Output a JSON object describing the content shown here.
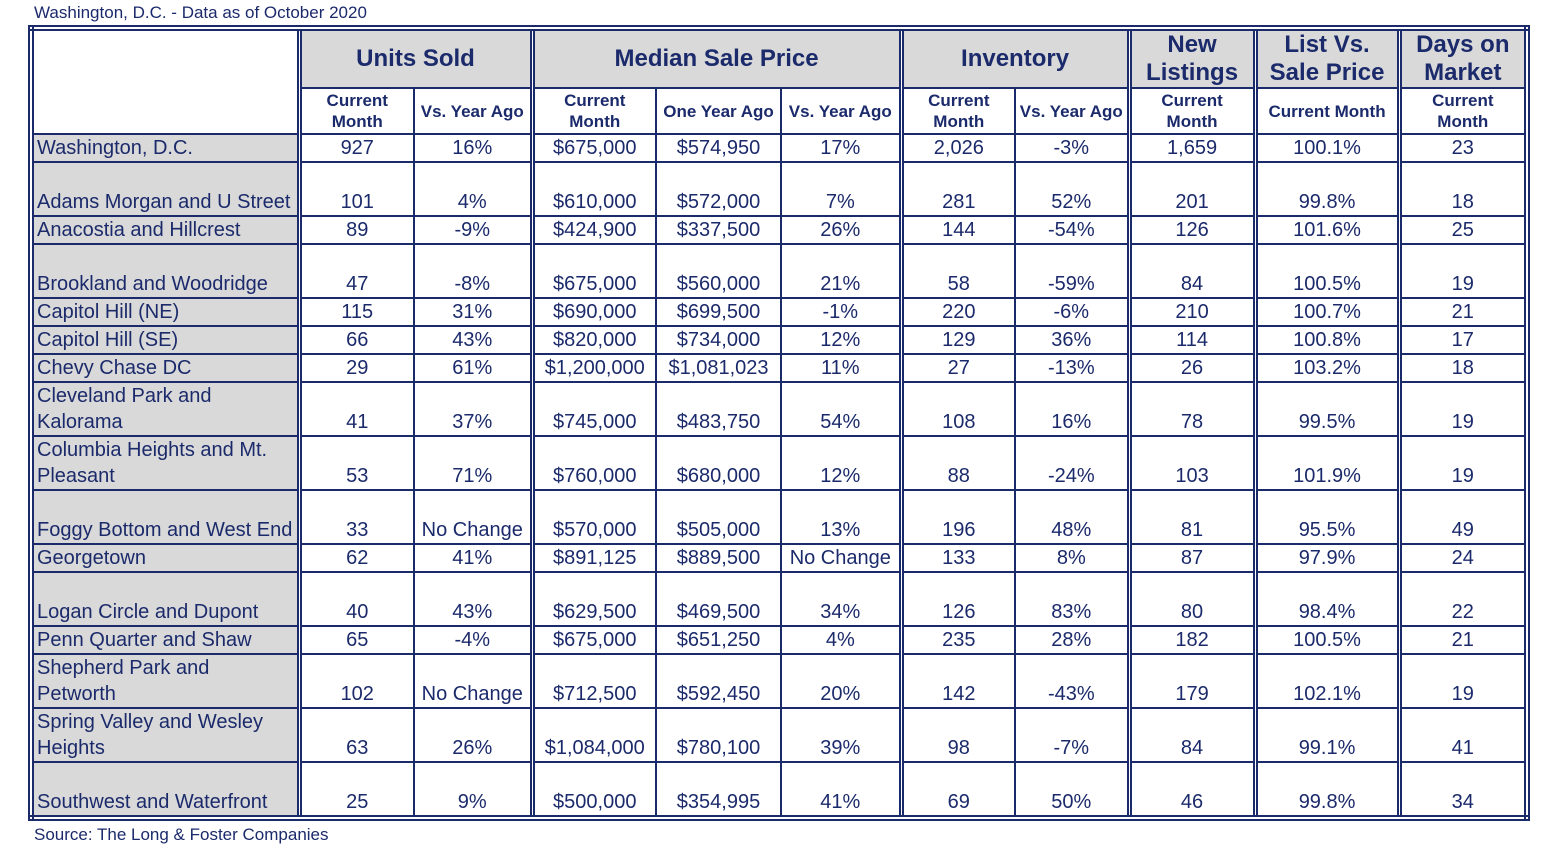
{
  "caption": "Washington, D.C. - Data as of October 2020",
  "source": "Source: The Long & Foster Companies",
  "header": {
    "groups": [
      "Units Sold",
      "Median Sale Price",
      "Inventory",
      "New Listings",
      "List Vs. Sale Price",
      "Days on Market"
    ],
    "sub": [
      "Current Month",
      "Vs. Year Ago",
      "Current Month",
      "One Year Ago",
      "Vs. Year Ago",
      "Current Month",
      "Vs. Year Ago",
      "Current Month",
      "Current Month",
      "Current Month"
    ]
  },
  "rows": [
    {
      "name": "Washington, D.C.",
      "tall": false,
      "values": [
        "927",
        "16%",
        "$675,000",
        "$574,950",
        "17%",
        "2,026",
        "-3%",
        "1,659",
        "100.1%",
        "23"
      ]
    },
    {
      "name": "Adams Morgan and U Street",
      "tall": true,
      "values": [
        "101",
        "4%",
        "$610,000",
        "$572,000",
        "7%",
        "281",
        "52%",
        "201",
        "99.8%",
        "18"
      ]
    },
    {
      "name": "Anacostia and Hillcrest",
      "tall": false,
      "values": [
        "89",
        "-9%",
        "$424,900",
        "$337,500",
        "26%",
        "144",
        "-54%",
        "126",
        "101.6%",
        "25"
      ]
    },
    {
      "name": "Brookland and Woodridge",
      "tall": true,
      "values": [
        "47",
        "-8%",
        "$675,000",
        "$560,000",
        "21%",
        "58",
        "-59%",
        "84",
        "100.5%",
        "19"
      ]
    },
    {
      "name": "Capitol Hill (NE)",
      "tall": false,
      "values": [
        "115",
        "31%",
        "$690,000",
        "$699,500",
        "-1%",
        "220",
        "-6%",
        "210",
        "100.7%",
        "21"
      ]
    },
    {
      "name": "Capitol Hill (SE)",
      "tall": false,
      "values": [
        "66",
        "43%",
        "$820,000",
        "$734,000",
        "12%",
        "129",
        "36%",
        "114",
        "100.8%",
        "17"
      ]
    },
    {
      "name": "Chevy Chase DC",
      "tall": false,
      "values": [
        "29",
        "61%",
        "$1,200,000",
        "$1,081,023",
        "11%",
        "27",
        "-13%",
        "26",
        "103.2%",
        "18"
      ]
    },
    {
      "name": "Cleveland Park and Kalorama",
      "tall": true,
      "values": [
        "41",
        "37%",
        "$745,000",
        "$483,750",
        "54%",
        "108",
        "16%",
        "78",
        "99.5%",
        "19"
      ]
    },
    {
      "name": "Columbia Heights and Mt. Pleasant",
      "tall": true,
      "values": [
        "53",
        "71%",
        "$760,000",
        "$680,000",
        "12%",
        "88",
        "-24%",
        "103",
        "101.9%",
        "19"
      ]
    },
    {
      "name": "Foggy Bottom and West End",
      "tall": true,
      "values": [
        "33",
        "No Change",
        "$570,000",
        "$505,000",
        "13%",
        "196",
        "48%",
        "81",
        "95.5%",
        "49"
      ]
    },
    {
      "name": "Georgetown",
      "tall": false,
      "values": [
        "62",
        "41%",
        "$891,125",
        "$889,500",
        "No Change",
        "133",
        "8%",
        "87",
        "97.9%",
        "24"
      ]
    },
    {
      "name": "Logan Circle and Dupont",
      "tall": true,
      "values": [
        "40",
        "43%",
        "$629,500",
        "$469,500",
        "34%",
        "126",
        "83%",
        "80",
        "98.4%",
        "22"
      ]
    },
    {
      "name": "Penn Quarter and Shaw",
      "tall": false,
      "values": [
        "65",
        "-4%",
        "$675,000",
        "$651,250",
        "4%",
        "235",
        "28%",
        "182",
        "100.5%",
        "21"
      ]
    },
    {
      "name": "Shepherd Park and Petworth",
      "tall": true,
      "values": [
        "102",
        "No Change",
        "$712,500",
        "$592,450",
        "20%",
        "142",
        "-43%",
        "179",
        "102.1%",
        "19"
      ]
    },
    {
      "name": "Spring Valley and Wesley Heights",
      "tall": true,
      "values": [
        "63",
        "26%",
        "$1,084,000",
        "$780,100",
        "39%",
        "98",
        "-7%",
        "84",
        "99.1%",
        "41"
      ]
    },
    {
      "name": "Southwest and Waterfront",
      "tall": true,
      "values": [
        "25",
        "9%",
        "$500,000",
        "$354,995",
        "41%",
        "69",
        "50%",
        "46",
        "99.8%",
        "34"
      ]
    }
  ],
  "colors": {
    "text": "#1b2a6b",
    "border": "#1b2a6b",
    "shade": "#d9d9d9"
  }
}
